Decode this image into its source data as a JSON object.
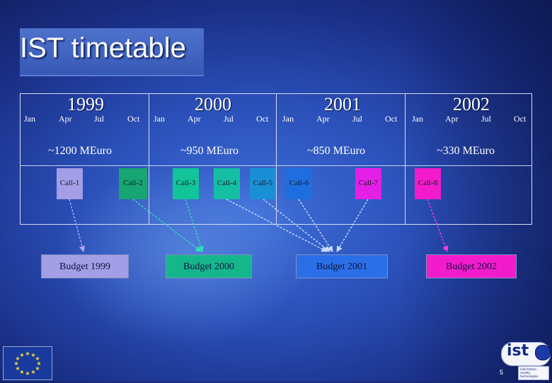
{
  "slide": {
    "title": "IST timetable",
    "page_number": "5"
  },
  "years": [
    {
      "label": "1999",
      "budget": "~1200 MEuro"
    },
    {
      "label": "2000",
      "budget": "~950 MEuro"
    },
    {
      "label": "2001",
      "budget": "~850 MEuro"
    },
    {
      "label": "2002",
      "budget": "~330 MEuro"
    }
  ],
  "months": [
    "Jan",
    "Apr",
    "Jul",
    "Oct"
  ],
  "calls": [
    {
      "label": "Call-1",
      "color": "#a39ee6"
    },
    {
      "label": "Call-2",
      "color": "#17a574"
    },
    {
      "label": "Call-3",
      "color": "#12c49a"
    },
    {
      "label": "Call-4",
      "color": "#14bfa4"
    },
    {
      "label": "Call-5",
      "color": "#1a8fd6"
    },
    {
      "label": "Call-6",
      "color": "#1f6ee0"
    },
    {
      "label": "Call-7",
      "color": "#e41fe6"
    },
    {
      "label": "Call-8",
      "color": "#f21ccd"
    }
  ],
  "budgets": [
    {
      "label": "Budget 1999",
      "color": "#a39ee6"
    },
    {
      "label": "Budget 2000",
      "color": "#16b68c"
    },
    {
      "label": "Budget 2001",
      "color": "#2a6fe8"
    },
    {
      "label": "Budget 2002",
      "color": "#f21ccd"
    }
  ],
  "logos": {
    "ist": "ist",
    "ist_tagline": "information society technologies"
  }
}
